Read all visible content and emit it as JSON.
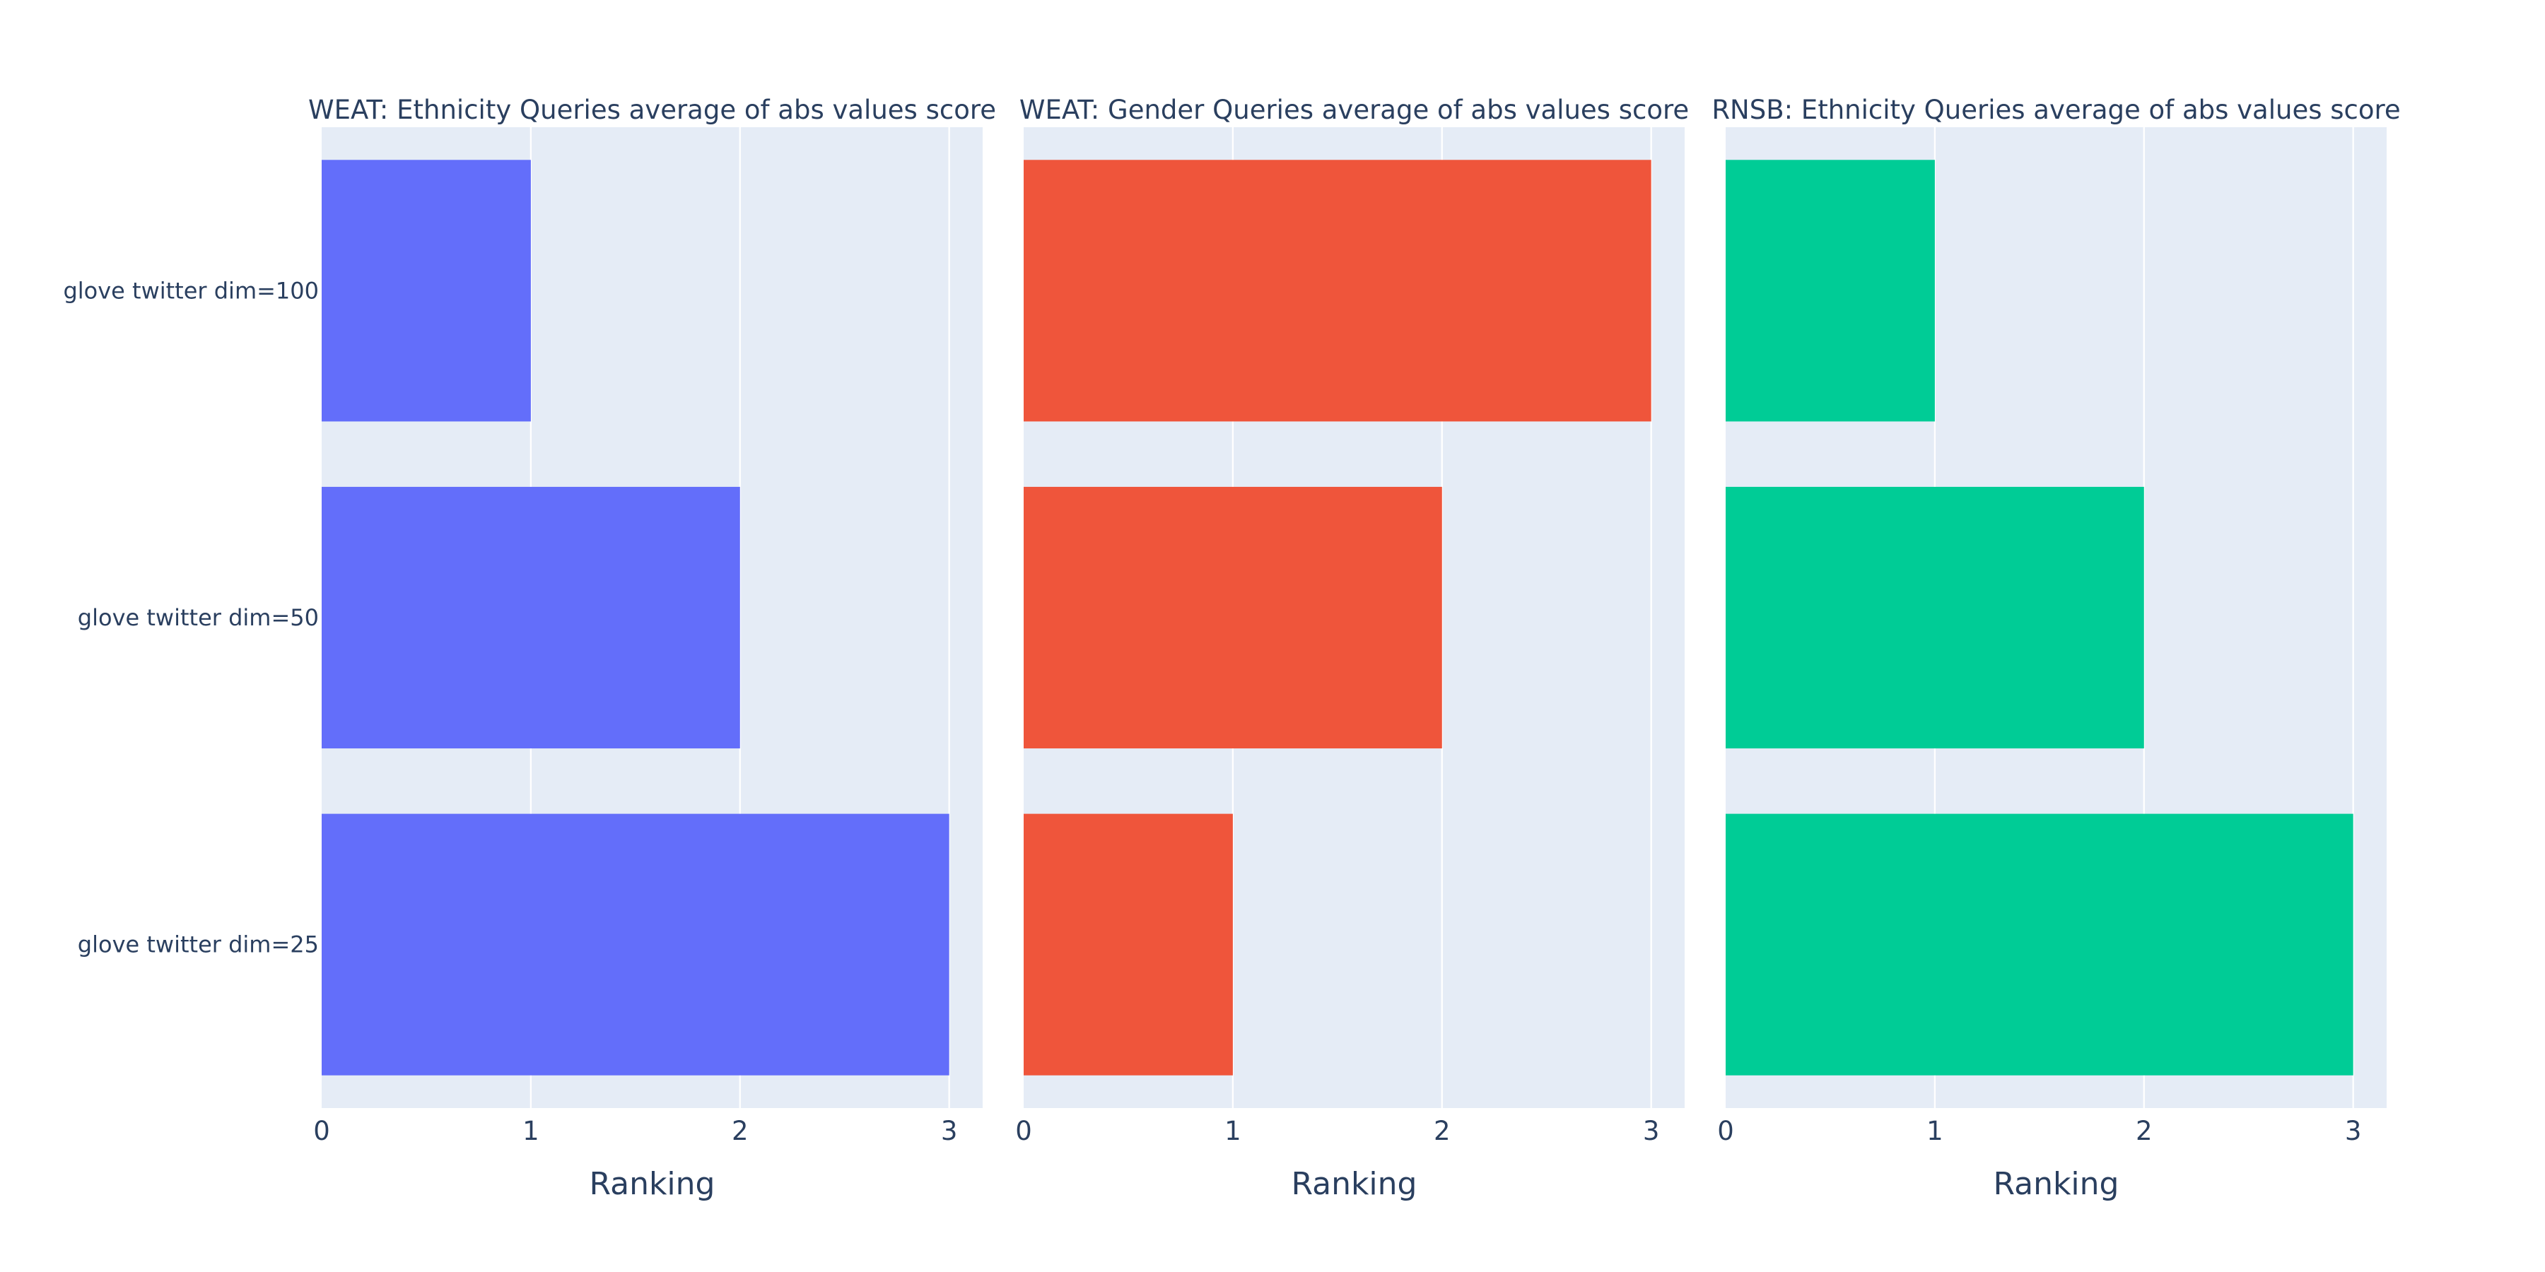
{
  "chart_data": [
    {
      "type": "bar",
      "orientation": "horizontal",
      "title": "WEAT: Ethnicity Queries average of abs values score",
      "xlabel": "Ranking",
      "ylabel": "",
      "categories": [
        "glove twitter dim=100",
        "glove twitter dim=50",
        "glove twitter dim=25"
      ],
      "values": [
        1,
        2,
        3
      ],
      "xlim": [
        0,
        3.16
      ],
      "xticks": [
        0,
        1,
        2,
        3
      ],
      "color": "#636efa",
      "grid": true,
      "show_category_labels": true
    },
    {
      "type": "bar",
      "orientation": "horizontal",
      "title": "WEAT: Gender Queries average of abs values score",
      "xlabel": "Ranking",
      "ylabel": "",
      "categories": [
        "glove twitter dim=100",
        "glove twitter dim=50",
        "glove twitter dim=25"
      ],
      "values": [
        3,
        2,
        1
      ],
      "xlim": [
        0,
        3.16
      ],
      "xticks": [
        0,
        1,
        2,
        3
      ],
      "color": "#ef553b",
      "grid": true,
      "show_category_labels": false
    },
    {
      "type": "bar",
      "orientation": "horizontal",
      "title": "RNSB: Ethnicity Queries average of abs values score",
      "xlabel": "Ranking",
      "ylabel": "",
      "categories": [
        "glove twitter dim=100",
        "glove twitter dim=50",
        "glove twitter dim=25"
      ],
      "values": [
        1,
        2,
        3
      ],
      "xlim": [
        0,
        3.16
      ],
      "xticks": [
        0,
        1,
        2,
        3
      ],
      "color": "#00cc96",
      "grid": true,
      "show_category_labels": false
    }
  ]
}
